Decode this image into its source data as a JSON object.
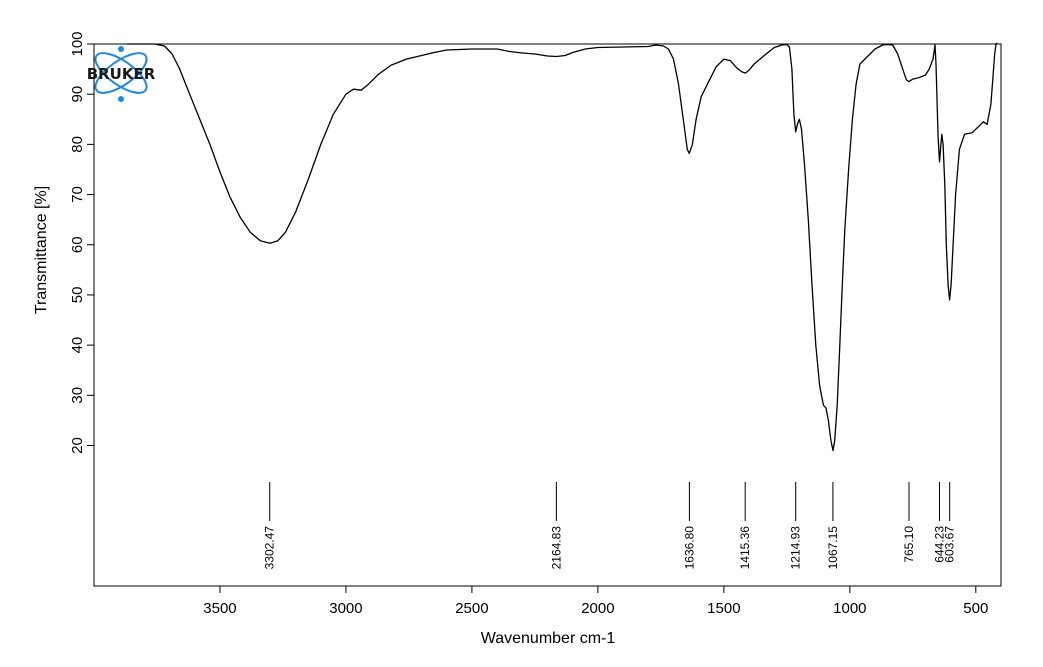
{
  "chart_data": {
    "type": "line",
    "title": "",
    "xlabel": "Wavenumber cm-1",
    "ylabel": "Transmittance [%]",
    "xlim": [
      4000,
      400
    ],
    "ylim": [
      -8,
      100
    ],
    "x_reversed": true,
    "x_ticks": [
      3500,
      3000,
      2500,
      2000,
      1500,
      1000,
      500
    ],
    "y_ticks": [
      20,
      30,
      40,
      50,
      60,
      70,
      80,
      90,
      100
    ],
    "grid": false,
    "legend": "none",
    "logo_text": "BRUKER",
    "colors": {
      "line": "#000000",
      "logo": "#1e88e5"
    },
    "series": [
      {
        "points": [
          [
            3870,
            100
          ],
          [
            3800,
            100
          ],
          [
            3760,
            100
          ],
          [
            3720,
            99.6
          ],
          [
            3690,
            98
          ],
          [
            3660,
            95
          ],
          [
            3620,
            90
          ],
          [
            3580,
            85
          ],
          [
            3540,
            80
          ],
          [
            3500,
            74.5
          ],
          [
            3460,
            69.5
          ],
          [
            3420,
            65.5
          ],
          [
            3380,
            62.5
          ],
          [
            3340,
            60.8
          ],
          [
            3302,
            60.3
          ],
          [
            3270,
            60.8
          ],
          [
            3240,
            62.5
          ],
          [
            3200,
            66.5
          ],
          [
            3150,
            73
          ],
          [
            3100,
            80
          ],
          [
            3050,
            86
          ],
          [
            3000,
            90
          ],
          [
            2970,
            91
          ],
          [
            2940,
            90.8
          ],
          [
            2910,
            92
          ],
          [
            2870,
            94
          ],
          [
            2820,
            95.8
          ],
          [
            2760,
            97
          ],
          [
            2700,
            97.7
          ],
          [
            2650,
            98.3
          ],
          [
            2600,
            98.8
          ],
          [
            2500,
            99
          ],
          [
            2400,
            99
          ],
          [
            2350,
            98.5
          ],
          [
            2300,
            98.2
          ],
          [
            2250,
            98
          ],
          [
            2200,
            97.6
          ],
          [
            2164,
            97.5
          ],
          [
            2130,
            97.7
          ],
          [
            2100,
            98.3
          ],
          [
            2050,
            99
          ],
          [
            2000,
            99.3
          ],
          [
            1900,
            99.4
          ],
          [
            1800,
            99.5
          ],
          [
            1770,
            99.8
          ],
          [
            1740,
            99.6
          ],
          [
            1720,
            99
          ],
          [
            1700,
            97
          ],
          [
            1680,
            92
          ],
          [
            1660,
            84.5
          ],
          [
            1645,
            79
          ],
          [
            1637,
            78.2
          ],
          [
            1625,
            80
          ],
          [
            1610,
            85
          ],
          [
            1590,
            89.5
          ],
          [
            1560,
            92.5
          ],
          [
            1530,
            95.5
          ],
          [
            1500,
            97
          ],
          [
            1475,
            96.7
          ],
          [
            1450,
            95.3
          ],
          [
            1430,
            94.5
          ],
          [
            1415,
            94.2
          ],
          [
            1400,
            94.8
          ],
          [
            1380,
            96
          ],
          [
            1350,
            97.3
          ],
          [
            1320,
            98.5
          ],
          [
            1300,
            99.3
          ],
          [
            1270,
            99.8
          ],
          [
            1250,
            99.9
          ],
          [
            1240,
            99.4
          ],
          [
            1230,
            95
          ],
          [
            1222,
            86
          ],
          [
            1215,
            82.5
          ],
          [
            1208,
            84
          ],
          [
            1200,
            85
          ],
          [
            1192,
            83
          ],
          [
            1180,
            76
          ],
          [
            1165,
            65
          ],
          [
            1150,
            52
          ],
          [
            1135,
            40
          ],
          [
            1120,
            32
          ],
          [
            1105,
            28
          ],
          [
            1095,
            27.5
          ],
          [
            1085,
            25
          ],
          [
            1075,
            21
          ],
          [
            1067,
            19
          ],
          [
            1060,
            21
          ],
          [
            1050,
            28
          ],
          [
            1040,
            40
          ],
          [
            1030,
            52
          ],
          [
            1020,
            63
          ],
          [
            1005,
            75
          ],
          [
            990,
            85
          ],
          [
            975,
            92
          ],
          [
            960,
            96
          ],
          [
            930,
            97.5
          ],
          [
            900,
            99
          ],
          [
            870,
            99.8
          ],
          [
            850,
            99.9
          ],
          [
            830,
            99.8
          ],
          [
            810,
            98
          ],
          [
            790,
            95
          ],
          [
            775,
            92.8
          ],
          [
            765,
            92.5
          ],
          [
            750,
            93
          ],
          [
            725,
            93.3
          ],
          [
            700,
            93.8
          ],
          [
            685,
            95
          ],
          [
            670,
            97
          ],
          [
            662,
            99.8
          ],
          [
            658,
            96
          ],
          [
            650,
            82
          ],
          [
            644,
            76.5
          ],
          [
            640,
            79
          ],
          [
            635,
            82
          ],
          [
            630,
            80
          ],
          [
            623,
            72
          ],
          [
            617,
            60
          ],
          [
            610,
            52
          ],
          [
            604,
            49
          ],
          [
            598,
            52
          ],
          [
            590,
            60
          ],
          [
            580,
            70
          ],
          [
            565,
            79
          ],
          [
            545,
            82
          ],
          [
            515,
            82.3
          ],
          [
            490,
            83.5
          ],
          [
            470,
            84.5
          ],
          [
            455,
            84
          ],
          [
            440,
            88
          ],
          [
            425,
            98
          ],
          [
            420,
            100
          ],
          [
            415,
            100.2
          ]
        ]
      }
    ],
    "peaks": [
      {
        "x": 3302.47,
        "label": "3302.47"
      },
      {
        "x": 2164.83,
        "label": "2164.83"
      },
      {
        "x": 1636.8,
        "label": "1636.80"
      },
      {
        "x": 1415.36,
        "label": "1415.36"
      },
      {
        "x": 1214.93,
        "label": "1214.93"
      },
      {
        "x": 1067.15,
        "label": "1067.15"
      },
      {
        "x": 765.1,
        "label": "765.10"
      },
      {
        "x": 644.23,
        "label": "644.23"
      },
      {
        "x": 603.67,
        "label": "603.67"
      }
    ]
  }
}
